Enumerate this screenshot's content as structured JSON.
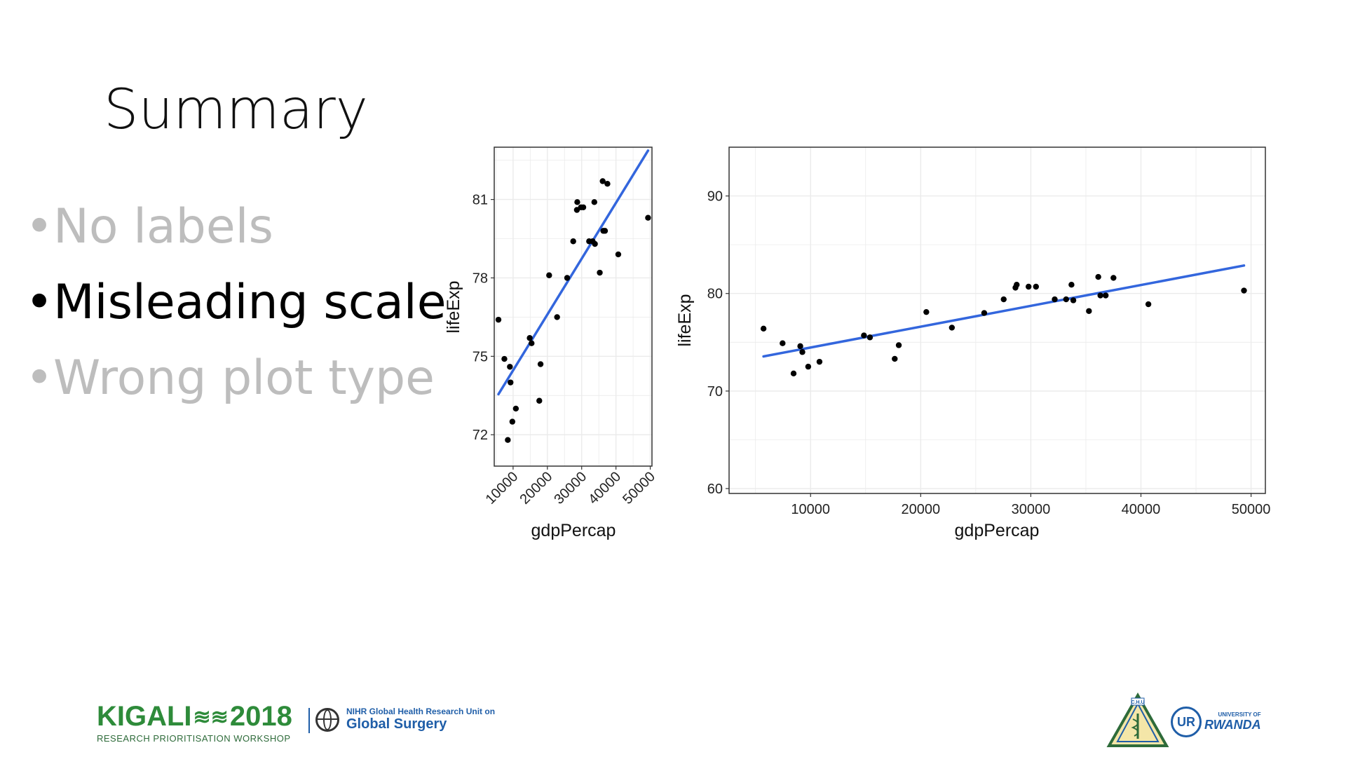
{
  "slide": {
    "title": "Summary",
    "bullets": [
      {
        "text": "No labels",
        "state": "dim"
      },
      {
        "text": "Misleading scale",
        "state": "active"
      },
      {
        "text": "Wrong plot type",
        "state": "dim"
      }
    ]
  },
  "colors": {
    "dim_text": "#bdbdbd",
    "active_text": "#000000",
    "trend_line": "#3366dd",
    "points": "#000000",
    "grid": "#ebebeb",
    "logo_green": "#2e8b3a",
    "logo_blue": "#1f5ea8"
  },
  "chart_data": [
    {
      "type": "scatter",
      "title": "",
      "xlabel": "gdpPercap",
      "ylabel": "lifeExp",
      "xlim": [
        4500,
        50500
      ],
      "ylim": [
        70.8,
        83.0
      ],
      "xticks": [
        10000,
        20000,
        30000,
        40000,
        50000
      ],
      "yticks": [
        72,
        75,
        78,
        81
      ],
      "xtick_rotation": 45,
      "grid": true,
      "trendline": {
        "type": "linear",
        "x": [
          5728,
          49357
        ],
        "y": [
          73.55,
          82.87
        ]
      },
      "points": [
        [
          5728,
          76.4
        ],
        [
          7458,
          74.9
        ],
        [
          8458,
          71.8
        ],
        [
          9066,
          74.6
        ],
        [
          9254,
          74.0
        ],
        [
          9786,
          72.5
        ],
        [
          10808,
          73.0
        ],
        [
          14847,
          75.7
        ],
        [
          15390,
          75.5
        ],
        [
          17642,
          73.3
        ],
        [
          18009,
          74.7
        ],
        [
          20510,
          78.1
        ],
        [
          22833,
          76.5
        ],
        [
          25768,
          78.0
        ],
        [
          27538,
          79.4
        ],
        [
          28604,
          80.6
        ],
        [
          28718,
          80.9
        ],
        [
          29796,
          80.7
        ],
        [
          30470,
          80.7
        ],
        [
          32170,
          79.4
        ],
        [
          33207,
          79.4
        ],
        [
          33692,
          80.9
        ],
        [
          33860,
          79.3
        ],
        [
          35278,
          78.2
        ],
        [
          36126,
          81.7
        ],
        [
          36319,
          79.8
        ],
        [
          36798,
          79.8
        ],
        [
          37506,
          81.6
        ],
        [
          40676,
          78.9
        ],
        [
          49357,
          80.3
        ]
      ]
    },
    {
      "type": "scatter",
      "title": "",
      "xlabel": "gdpPercap",
      "ylabel": "lifeExp",
      "xlim": [
        2600,
        51300
      ],
      "ylim": [
        59.5,
        95.0
      ],
      "xticks": [
        10000,
        20000,
        30000,
        40000,
        50000
      ],
      "yticks": [
        60,
        70,
        80,
        90
      ],
      "grid": true,
      "trendline": {
        "type": "linear",
        "x": [
          5728,
          49357
        ],
        "y": [
          73.55,
          82.87
        ]
      },
      "points": [
        [
          5728,
          76.4
        ],
        [
          7458,
          74.9
        ],
        [
          8458,
          71.8
        ],
        [
          9066,
          74.6
        ],
        [
          9254,
          74.0
        ],
        [
          9786,
          72.5
        ],
        [
          10808,
          73.0
        ],
        [
          14847,
          75.7
        ],
        [
          15390,
          75.5
        ],
        [
          17642,
          73.3
        ],
        [
          18009,
          74.7
        ],
        [
          20510,
          78.1
        ],
        [
          22833,
          76.5
        ],
        [
          25768,
          78.0
        ],
        [
          27538,
          79.4
        ],
        [
          28604,
          80.6
        ],
        [
          28718,
          80.9
        ],
        [
          29796,
          80.7
        ],
        [
          30470,
          80.7
        ],
        [
          32170,
          79.4
        ],
        [
          33207,
          79.4
        ],
        [
          33692,
          80.9
        ],
        [
          33860,
          79.3
        ],
        [
          35278,
          78.2
        ],
        [
          36126,
          81.7
        ],
        [
          36319,
          79.8
        ],
        [
          36798,
          79.8
        ],
        [
          37506,
          81.6
        ],
        [
          40676,
          78.9
        ],
        [
          49357,
          80.3
        ]
      ]
    }
  ],
  "footer": {
    "kigali_left": "KIGALI",
    "kigali_right": "2018",
    "workshop": "RESEARCH PRIORITISATION WORKSHOP",
    "nihr_line1": "NIHR Global Health Research Unit on",
    "nihr_line2": "Global Surgery",
    "chu_label": "C.H.U",
    "ur_small": "UNIVERSITY OF",
    "ur_big": "RWANDA",
    "ur_mark": "UR"
  }
}
